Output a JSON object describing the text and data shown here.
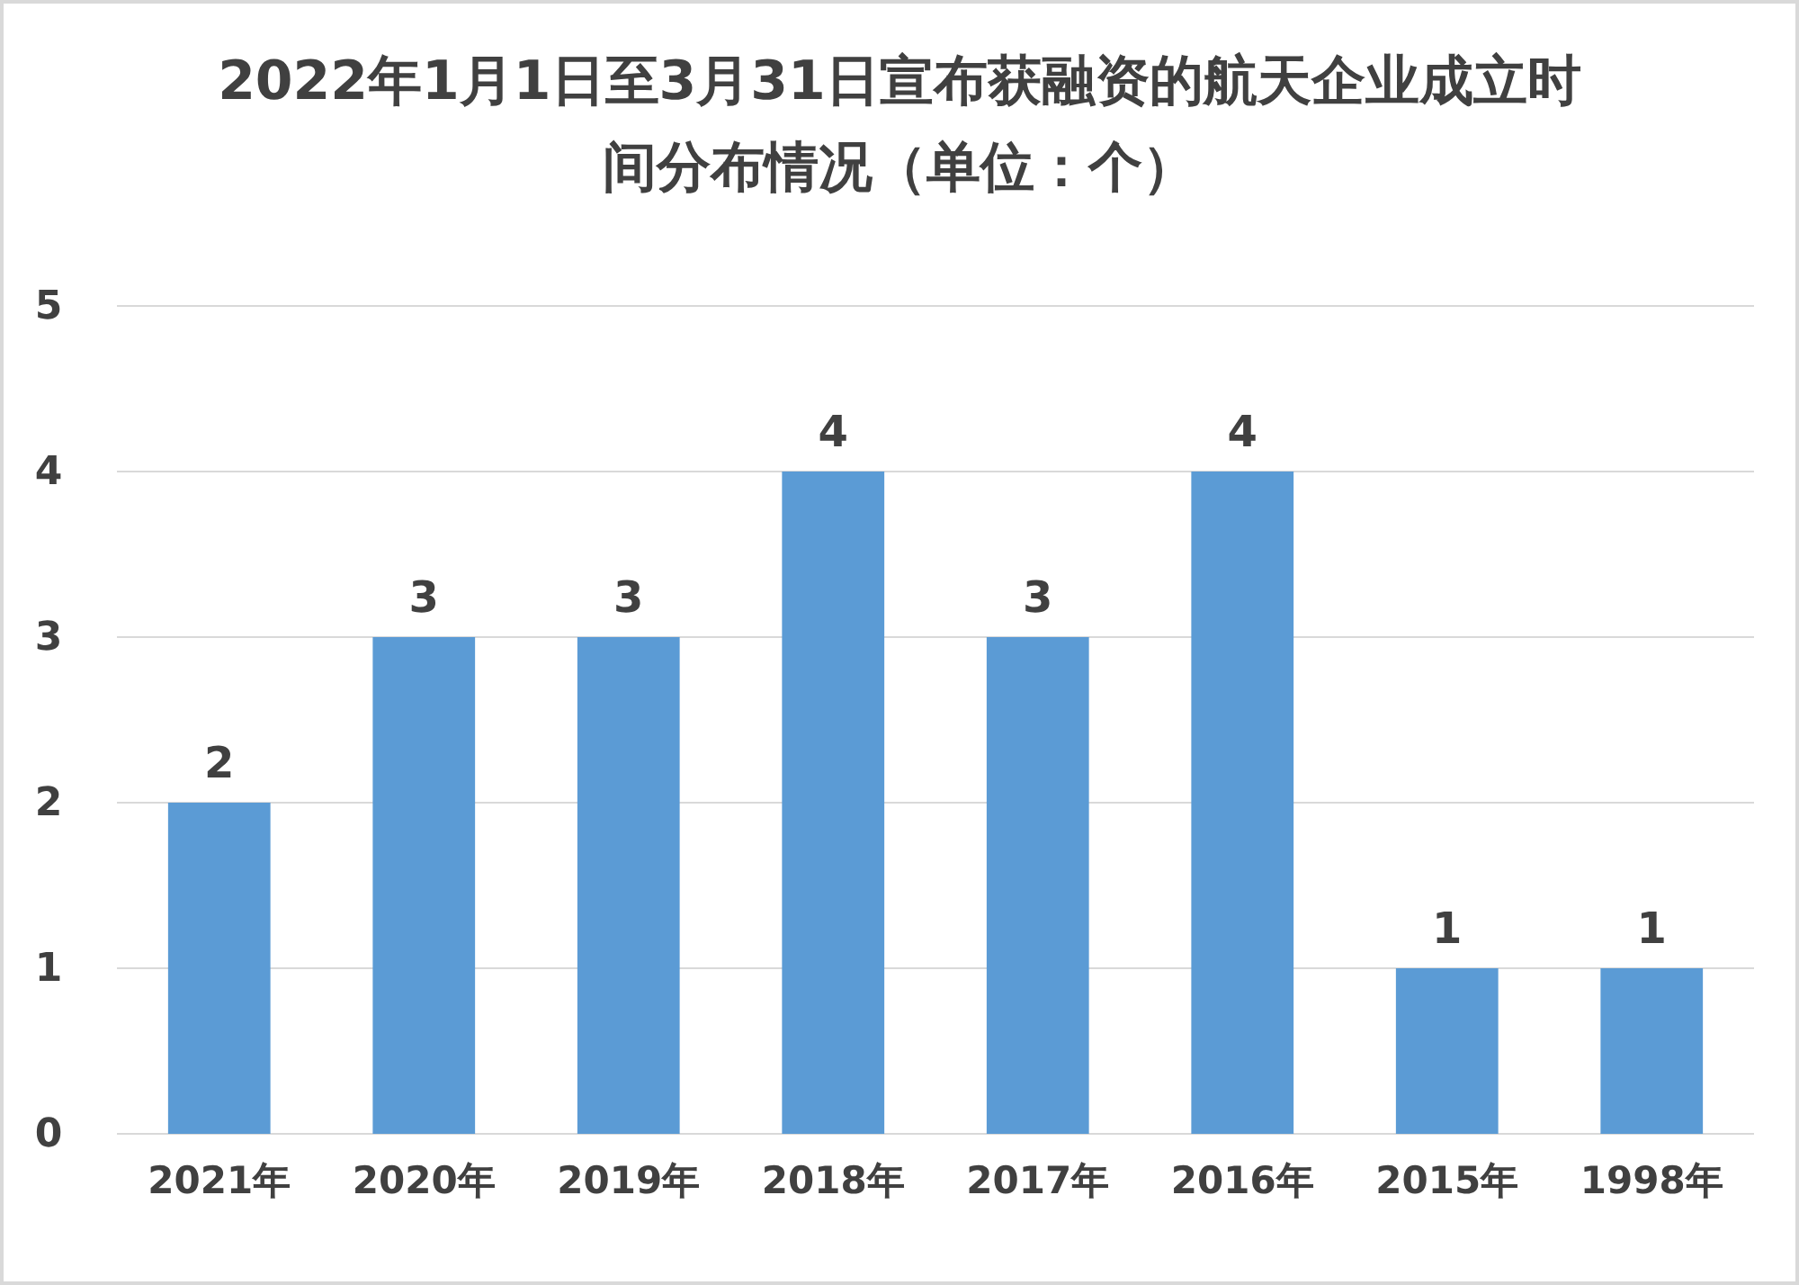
{
  "chart_data": {
    "type": "bar",
    "title": "2022年1月1日至3月31日宣布获融资的航天企业成立时间分布情况（单位：个）",
    "categories": [
      "2021年",
      "2020年",
      "2019年",
      "2018年",
      "2017年",
      "2016年",
      "2015年",
      "1998年"
    ],
    "values": [
      2,
      3,
      3,
      4,
      3,
      4,
      1,
      1
    ],
    "color": "#5b9bd5",
    "ylim": [
      0,
      5
    ],
    "yticks": [
      0,
      1,
      2,
      3,
      4,
      5
    ],
    "grid": "y",
    "data_labels": true
  }
}
